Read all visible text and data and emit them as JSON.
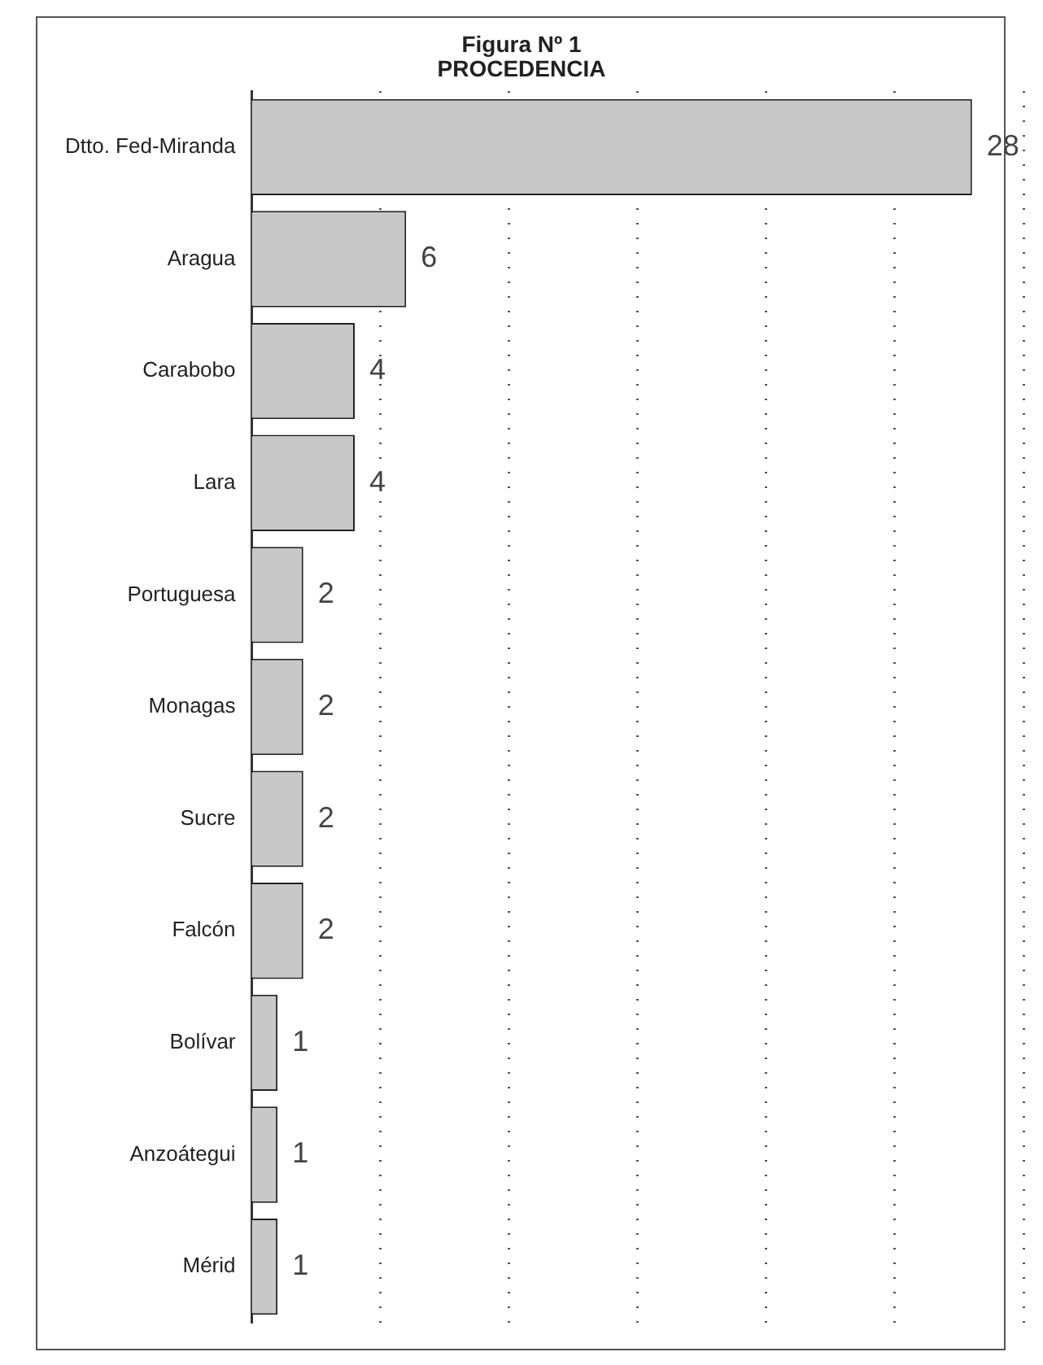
{
  "chart_data": {
    "type": "bar",
    "orientation": "horizontal",
    "title": "Figura Nº 1",
    "subtitle": "PROCEDENCIA",
    "categories": [
      "Dtto. Fed-Miranda",
      "Aragua",
      "Carabobo",
      "Lara",
      "Portuguesa",
      "Monagas",
      "Sucre",
      "Falcón",
      "Bolívar",
      "Anzoátegui",
      "Mérid"
    ],
    "values": [
      28,
      6,
      4,
      4,
      2,
      2,
      2,
      2,
      1,
      1,
      1
    ],
    "color": "#c8c8c8",
    "xlim": [
      0,
      30
    ],
    "xticks": [
      {
        "value": 5,
        "label": null
      },
      {
        "value": 10,
        "label": null
      },
      {
        "value": 15,
        "label": null
      },
      {
        "value": 20,
        "label": null
      },
      {
        "value": 25,
        "label": null
      },
      {
        "value": 30,
        "label": null
      }
    ],
    "tick_labels": "y",
    "grid": "x",
    "line_style": "dotted",
    "legend": false,
    "data_labels": true
  }
}
